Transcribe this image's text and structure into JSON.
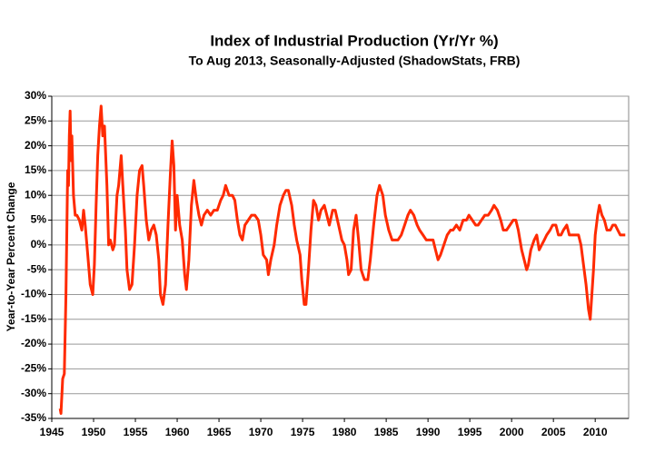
{
  "chart_data": {
    "type": "line",
    "title": "Index of Industrial Production (Yr/Yr %)",
    "subtitle": "To Aug 2013, Seasonally-Adjusted (ShadowStats, FRB)",
    "y_label": "Year-to-Year Percent Change",
    "color": "#ff2a00",
    "grid": true,
    "xlim": [
      1945,
      2014
    ],
    "xticks": [
      1945,
      1950,
      1955,
      1960,
      1965,
      1970,
      1975,
      1980,
      1985,
      1990,
      1995,
      2000,
      2005,
      2010
    ],
    "ylim": [
      -35,
      30
    ],
    "yticks": [
      {
        "value": -35,
        "label": "-35%"
      },
      {
        "value": -30,
        "label": "-30%"
      },
      {
        "value": -25,
        "label": "-25%"
      },
      {
        "value": -20,
        "label": "-20%"
      },
      {
        "value": -15,
        "label": "-15%"
      },
      {
        "value": -10,
        "label": "-10%"
      },
      {
        "value": -5,
        "label": "-5%"
      },
      {
        "value": 0,
        "label": "0%"
      },
      {
        "value": 5,
        "label": "5%"
      },
      {
        "value": 10,
        "label": "10%"
      },
      {
        "value": 15,
        "label": "15%"
      },
      {
        "value": 20,
        "label": "20%"
      },
      {
        "value": 25,
        "label": "25%"
      },
      {
        "value": 30,
        "label": "30%"
      }
    ],
    "x": [
      1946.0,
      1946.1,
      1946.3,
      1946.5,
      1946.7,
      1946.9,
      1947.0,
      1947.1,
      1947.2,
      1947.3,
      1947.4,
      1947.6,
      1947.8,
      1948.0,
      1948.3,
      1948.6,
      1948.8,
      1949.0,
      1949.3,
      1949.6,
      1949.9,
      1950.1,
      1950.3,
      1950.5,
      1950.7,
      1950.9,
      1951.1,
      1951.3,
      1951.6,
      1951.8,
      1952.0,
      1952.3,
      1952.5,
      1952.8,
      1953.0,
      1953.3,
      1953.5,
      1953.8,
      1954.0,
      1954.3,
      1954.6,
      1954.9,
      1955.2,
      1955.5,
      1955.8,
      1956.0,
      1956.3,
      1956.6,
      1956.9,
      1957.2,
      1957.5,
      1957.8,
      1958.0,
      1958.3,
      1958.6,
      1958.9,
      1959.2,
      1959.4,
      1959.6,
      1959.8,
      1960.0,
      1960.3,
      1960.6,
      1960.9,
      1961.1,
      1961.4,
      1961.7,
      1962.0,
      1962.3,
      1962.6,
      1962.9,
      1963.2,
      1963.6,
      1964.0,
      1964.4,
      1964.8,
      1965.2,
      1965.5,
      1965.8,
      1966.2,
      1966.6,
      1966.9,
      1967.2,
      1967.5,
      1967.8,
      1968.1,
      1968.5,
      1968.9,
      1969.3,
      1969.7,
      1970.0,
      1970.3,
      1970.7,
      1970.9,
      1971.2,
      1971.6,
      1971.9,
      1972.3,
      1972.7,
      1973.0,
      1973.3,
      1973.7,
      1974.0,
      1974.3,
      1974.7,
      1974.9,
      1975.2,
      1975.4,
      1975.7,
      1976.0,
      1976.3,
      1976.6,
      1976.9,
      1977.2,
      1977.6,
      1977.9,
      1978.2,
      1978.6,
      1978.9,
      1979.3,
      1979.7,
      1980.0,
      1980.3,
      1980.5,
      1980.8,
      1981.1,
      1981.4,
      1981.7,
      1982.0,
      1982.4,
      1982.8,
      1983.1,
      1983.5,
      1983.9,
      1984.2,
      1984.6,
      1984.9,
      1985.3,
      1985.7,
      1986.0,
      1986.4,
      1986.8,
      1987.2,
      1987.6,
      1987.9,
      1988.3,
      1988.7,
      1989.0,
      1989.4,
      1989.8,
      1990.2,
      1990.6,
      1990.9,
      1991.2,
      1991.5,
      1991.9,
      1992.3,
      1992.7,
      1993.0,
      1993.4,
      1993.8,
      1994.2,
      1994.6,
      1994.9,
      1995.3,
      1995.7,
      1996.0,
      1996.4,
      1996.8,
      1997.2,
      1997.6,
      1997.9,
      1998.3,
      1998.7,
      1999.0,
      1999.4,
      1999.8,
      2000.2,
      2000.5,
      2000.8,
      2001.2,
      2001.5,
      2001.8,
      2002.0,
      2002.3,
      2002.7,
      2003.0,
      2003.3,
      2003.6,
      2003.9,
      2004.2,
      2004.6,
      2004.9,
      2005.3,
      2005.6,
      2005.9,
      2006.2,
      2006.6,
      2006.9,
      2007.3,
      2007.7,
      2008.0,
      2008.3,
      2008.6,
      2008.9,
      2009.2,
      2009.4,
      2009.6,
      2009.8,
      2010.0,
      2010.3,
      2010.5,
      2010.8,
      2011.1,
      2011.4,
      2011.8,
      2012.1,
      2012.4,
      2012.7,
      2013.0,
      2013.3,
      2013.6
    ],
    "values": [
      -33,
      -34,
      -27,
      -26,
      -10,
      15,
      12,
      22,
      27,
      17,
      22,
      10,
      6,
      6,
      5,
      3,
      7,
      4,
      -2,
      -8,
      -10,
      -4,
      8,
      18,
      24,
      28,
      22,
      24,
      12,
      0,
      1,
      -1,
      0,
      10,
      12,
      18,
      12,
      3,
      -5,
      -9,
      -8,
      0,
      10,
      15,
      16,
      12,
      5,
      1,
      3,
      4,
      2,
      -3,
      -10,
      -12,
      -8,
      4,
      15,
      21,
      16,
      3,
      10,
      4,
      1,
      -6,
      -9,
      -3,
      8,
      13,
      9,
      6,
      4,
      6,
      7,
      6,
      7,
      7,
      9,
      10,
      12,
      10,
      10,
      9,
      5,
      2,
      1,
      4,
      5,
      6,
      6,
      5,
      2,
      -2,
      -3,
      -6,
      -3,
      0,
      4,
      8,
      10,
      11,
      11,
      8,
      4,
      1,
      -2,
      -7,
      -12,
      -12,
      -5,
      3,
      9,
      8,
      5,
      7,
      8,
      6,
      4,
      7,
      7,
      4,
      1,
      0,
      -3,
      -6,
      -5,
      3,
      6,
      1,
      -5,
      -7,
      -7,
      -3,
      4,
      10,
      12,
      10,
      6,
      3,
      1,
      1,
      1,
      2,
      4,
      6,
      7,
      6,
      4,
      3,
      2,
      1,
      1,
      1,
      -1,
      -3,
      -2,
      0,
      2,
      3,
      3,
      4,
      3,
      5,
      5,
      6,
      5,
      4,
      4,
      5,
      6,
      6,
      7,
      8,
      7,
      5,
      3,
      3,
      4,
      5,
      5,
      3,
      -1,
      -3,
      -5,
      -4,
      -1,
      1,
      2,
      -1,
      0,
      1,
      2,
      3,
      4,
      4,
      2,
      2,
      3,
      4,
      2,
      2,
      2,
      2,
      0,
      -4,
      -8,
      -13,
      -15,
      -10,
      -5,
      2,
      6,
      8,
      6,
      5,
      3,
      3,
      4,
      4,
      3,
      2,
      2,
      2
    ]
  }
}
